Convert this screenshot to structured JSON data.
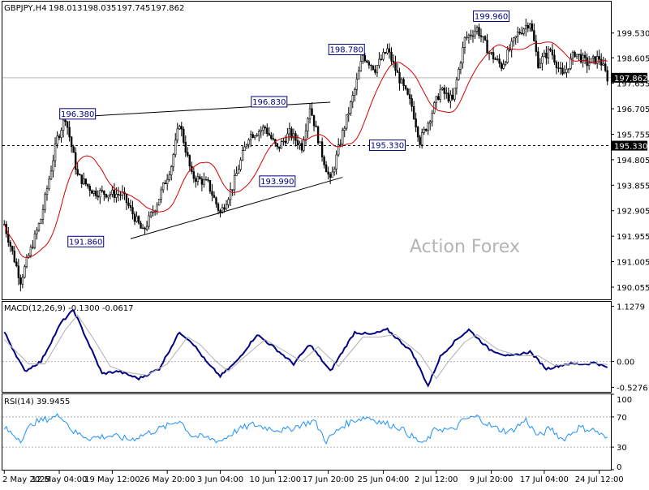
{
  "chart_data": [
    {
      "type": "candlestick",
      "symbol_label": "GBPJPY,H4",
      "ohlc": [
        "198.013",
        "198.035",
        "197.745",
        "197.862"
      ],
      "last_price": "197.862",
      "ylim": [
        189.6,
        200.7
      ],
      "price_ticks": [
        "199.530",
        "198.605",
        "197.655",
        "196.705",
        "195.755",
        "194.805",
        "193.855",
        "192.905",
        "191.955",
        "191.005",
        "190.055"
      ],
      "x_labels": [
        "2 May 2025",
        "12 May 04:00",
        "19 May 12:00",
        "26 May 20:00",
        "3 Jun 04:00",
        "10 Jun 12:00",
        "17 Jun 20:00",
        "25 Jun 04:00",
        "2 Jul 12:00",
        "9 Jul 20:00",
        "17 Jul 04:00",
        "24 Jul 12:00"
      ],
      "annotations": [
        {
          "text": "196.380",
          "value": 196.38
        },
        {
          "text": "196.830",
          "value": 196.83
        },
        {
          "text": "191.860",
          "value": 191.86
        },
        {
          "text": "193.990",
          "value": 193.99
        },
        {
          "text": "198.780",
          "value": 198.78
        },
        {
          "text": "195.330",
          "value": 195.33
        },
        {
          "text": "199.960",
          "value": 199.96
        }
      ],
      "horizontal_level": {
        "text": "195.330",
        "value": 195.33
      },
      "anchors": [
        [
          0,
          192.4
        ],
        [
          8,
          190.3
        ],
        [
          18,
          192.6
        ],
        [
          26,
          195.6
        ],
        [
          30,
          196.4
        ],
        [
          36,
          194.2
        ],
        [
          44,
          193.6
        ],
        [
          58,
          193.5
        ],
        [
          68,
          192.1
        ],
        [
          75,
          193.2
        ],
        [
          82,
          194.6
        ],
        [
          86,
          196.2
        ],
        [
          92,
          194.2
        ],
        [
          100,
          193.9
        ],
        [
          106,
          192.8
        ],
        [
          112,
          193.8
        ],
        [
          120,
          195.7
        ],
        [
          128,
          196.0
        ],
        [
          134,
          195.2
        ],
        [
          140,
          195.8
        ],
        [
          146,
          195.3
        ],
        [
          150,
          196.8
        ],
        [
          156,
          195.0
        ],
        [
          160,
          193.99
        ],
        [
          166,
          195.8
        ],
        [
          172,
          197.4
        ],
        [
          176,
          198.7
        ],
        [
          182,
          198.2
        ],
        [
          188,
          198.9
        ],
        [
          194,
          197.8
        ],
        [
          200,
          196.8
        ],
        [
          204,
          195.5
        ],
        [
          208,
          196.2
        ],
        [
          214,
          197.4
        ],
        [
          220,
          197.0
        ],
        [
          226,
          199.3
        ],
        [
          232,
          199.7
        ],
        [
          238,
          198.8
        ],
        [
          244,
          198.3
        ],
        [
          252,
          199.5
        ],
        [
          258,
          199.96
        ],
        [
          262,
          198.4
        ],
        [
          268,
          198.9
        ],
        [
          274,
          197.9
        ],
        [
          280,
          198.8
        ],
        [
          286,
          198.4
        ],
        [
          292,
          198.6
        ],
        [
          296,
          197.862
        ]
      ],
      "moving_average": {
        "color": "#d40000"
      },
      "watermark": "Action Forex"
    },
    {
      "type": "line",
      "title": "MACD(12,26,9) -0.1300 -0.0617",
      "ticks": [
        "1.1279",
        "0.00",
        "-0.5276"
      ],
      "ylim": [
        -0.62,
        1.22
      ],
      "series": [
        {
          "color": "#000080",
          "anchors": [
            [
              0,
              0.6
            ],
            [
              10,
              -0.2
            ],
            [
              18,
              0.0
            ],
            [
              28,
              0.8
            ],
            [
              34,
              1.05
            ],
            [
              40,
              0.5
            ],
            [
              48,
              -0.25
            ],
            [
              56,
              -0.2
            ],
            [
              66,
              -0.35
            ],
            [
              76,
              -0.15
            ],
            [
              86,
              0.6
            ],
            [
              92,
              0.4
            ],
            [
              100,
              -0.05
            ],
            [
              106,
              -0.3
            ],
            [
              114,
              0.0
            ],
            [
              124,
              0.55
            ],
            [
              132,
              0.3
            ],
            [
              142,
              -0.05
            ],
            [
              150,
              0.35
            ],
            [
              160,
              -0.2
            ],
            [
              172,
              0.6
            ],
            [
              180,
              0.55
            ],
            [
              188,
              0.65
            ],
            [
              200,
              0.2
            ],
            [
              208,
              -0.5
            ],
            [
              214,
              0.1
            ],
            [
              222,
              0.45
            ],
            [
              228,
              0.65
            ],
            [
              238,
              0.25
            ],
            [
              248,
              0.1
            ],
            [
              258,
              0.2
            ],
            [
              266,
              -0.15
            ],
            [
              276,
              -0.05
            ],
            [
              286,
              -0.05
            ],
            [
              290,
              -0.02
            ],
            [
              296,
              -0.13
            ]
          ]
        },
        {
          "color": "#b0b0b0",
          "anchors": [
            [
              0,
              0.45
            ],
            [
              12,
              -0.05
            ],
            [
              20,
              -0.05
            ],
            [
              30,
              0.65
            ],
            [
              36,
              0.95
            ],
            [
              44,
              0.45
            ],
            [
              52,
              -0.1
            ],
            [
              60,
              -0.22
            ],
            [
              70,
              -0.28
            ],
            [
              80,
              -0.05
            ],
            [
              90,
              0.5
            ],
            [
              96,
              0.35
            ],
            [
              104,
              0.0
            ],
            [
              110,
              -0.2
            ],
            [
              118,
              0.1
            ],
            [
              128,
              0.45
            ],
            [
              136,
              0.25
            ],
            [
              146,
              0.0
            ],
            [
              154,
              0.3
            ],
            [
              164,
              -0.1
            ],
            [
              176,
              0.5
            ],
            [
              184,
              0.5
            ],
            [
              192,
              0.55
            ],
            [
              204,
              0.15
            ],
            [
              212,
              -0.35
            ],
            [
              218,
              0.0
            ],
            [
              226,
              0.4
            ],
            [
              232,
              0.55
            ],
            [
              242,
              0.25
            ],
            [
              252,
              0.12
            ],
            [
              262,
              0.12
            ],
            [
              270,
              -0.08
            ],
            [
              280,
              -0.05
            ],
            [
              290,
              -0.04
            ],
            [
              296,
              -0.06
            ]
          ]
        }
      ]
    },
    {
      "type": "line",
      "title": "RSI(14) 39.9455",
      "ticks": [
        "100",
        "70",
        "30",
        "0"
      ],
      "ylim": [
        0,
        100
      ],
      "levels": [
        70,
        30
      ],
      "series": [
        {
          "color": "#1e90ff",
          "anchors": [
            [
              0,
              55
            ],
            [
              8,
              40
            ],
            [
              14,
              62
            ],
            [
              22,
              68
            ],
            [
              28,
              72
            ],
            [
              34,
              50
            ],
            [
              42,
              42
            ],
            [
              52,
              45
            ],
            [
              62,
              40
            ],
            [
              70,
              48
            ],
            [
              80,
              58
            ],
            [
              86,
              66
            ],
            [
              92,
              45
            ],
            [
              100,
              42
            ],
            [
              106,
              38
            ],
            [
              114,
              52
            ],
            [
              122,
              60
            ],
            [
              130,
              55
            ],
            [
              138,
              52
            ],
            [
              146,
              60
            ],
            [
              152,
              65
            ],
            [
              158,
              38
            ],
            [
              166,
              58
            ],
            [
              172,
              66
            ],
            [
              178,
              70
            ],
            [
              186,
              62
            ],
            [
              194,
              56
            ],
            [
              202,
              40
            ],
            [
              206,
              34
            ],
            [
              212,
              55
            ],
            [
              220,
              52
            ],
            [
              226,
              67
            ],
            [
              232,
              70
            ],
            [
              240,
              56
            ],
            [
              248,
              50
            ],
            [
              256,
              66
            ],
            [
              262,
              44
            ],
            [
              268,
              55
            ],
            [
              274,
              40
            ],
            [
              282,
              56
            ],
            [
              290,
              52
            ],
            [
              296,
              39.9455
            ]
          ]
        }
      ]
    }
  ]
}
